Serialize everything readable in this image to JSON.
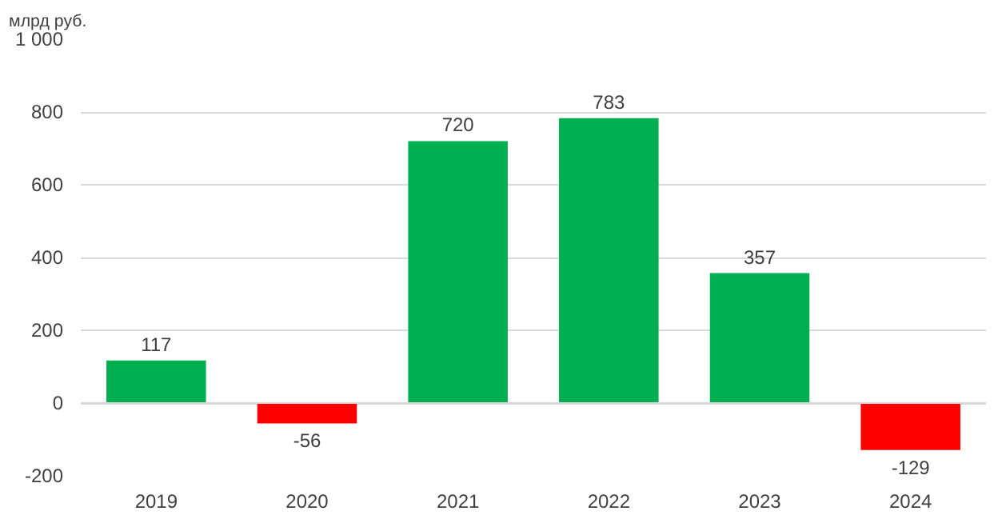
{
  "chart_data": {
    "type": "bar",
    "ylabel": "млрд руб.",
    "categories": [
      "2019",
      "2020",
      "2021",
      "2022",
      "2023",
      "2024"
    ],
    "values": [
      117,
      -56,
      720,
      783,
      357,
      -129
    ],
    "colors": [
      "#00b050",
      "#ff0000",
      "#00b050",
      "#00b050",
      "#00b050",
      "#ff0000"
    ],
    "ylim": [
      -200,
      1000
    ],
    "yticks": [
      -200,
      0,
      200,
      400,
      600,
      800,
      {
        "value": 1000,
        "label": "1 000"
      }
    ],
    "grid": "y",
    "data_labels": true
  }
}
